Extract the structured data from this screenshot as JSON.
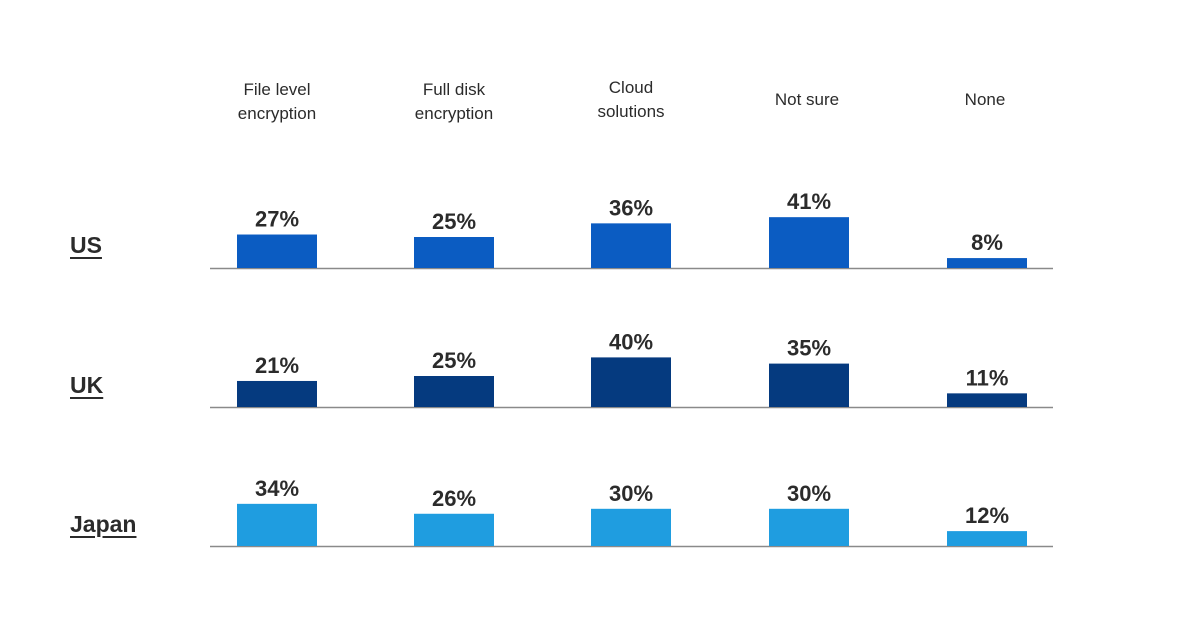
{
  "chart_data": {
    "type": "bar",
    "categories": [
      "File level\nencryption",
      "Full disk\nencryption",
      "Cloud\nsolutions",
      "Not sure",
      "None"
    ],
    "value_suffix": "%",
    "ylim": [
      0,
      45
    ],
    "grid": false,
    "series": [
      {
        "name": "US",
        "values": [
          27,
          25,
          36,
          41,
          8
        ],
        "color": "#0b5cc2"
      },
      {
        "name": "UK",
        "values": [
          21,
          25,
          40,
          35,
          11
        ],
        "color": "#053a7f"
      },
      {
        "name": "Japan",
        "values": [
          34,
          26,
          30,
          30,
          12
        ],
        "color": "#1f9de0"
      }
    ]
  }
}
